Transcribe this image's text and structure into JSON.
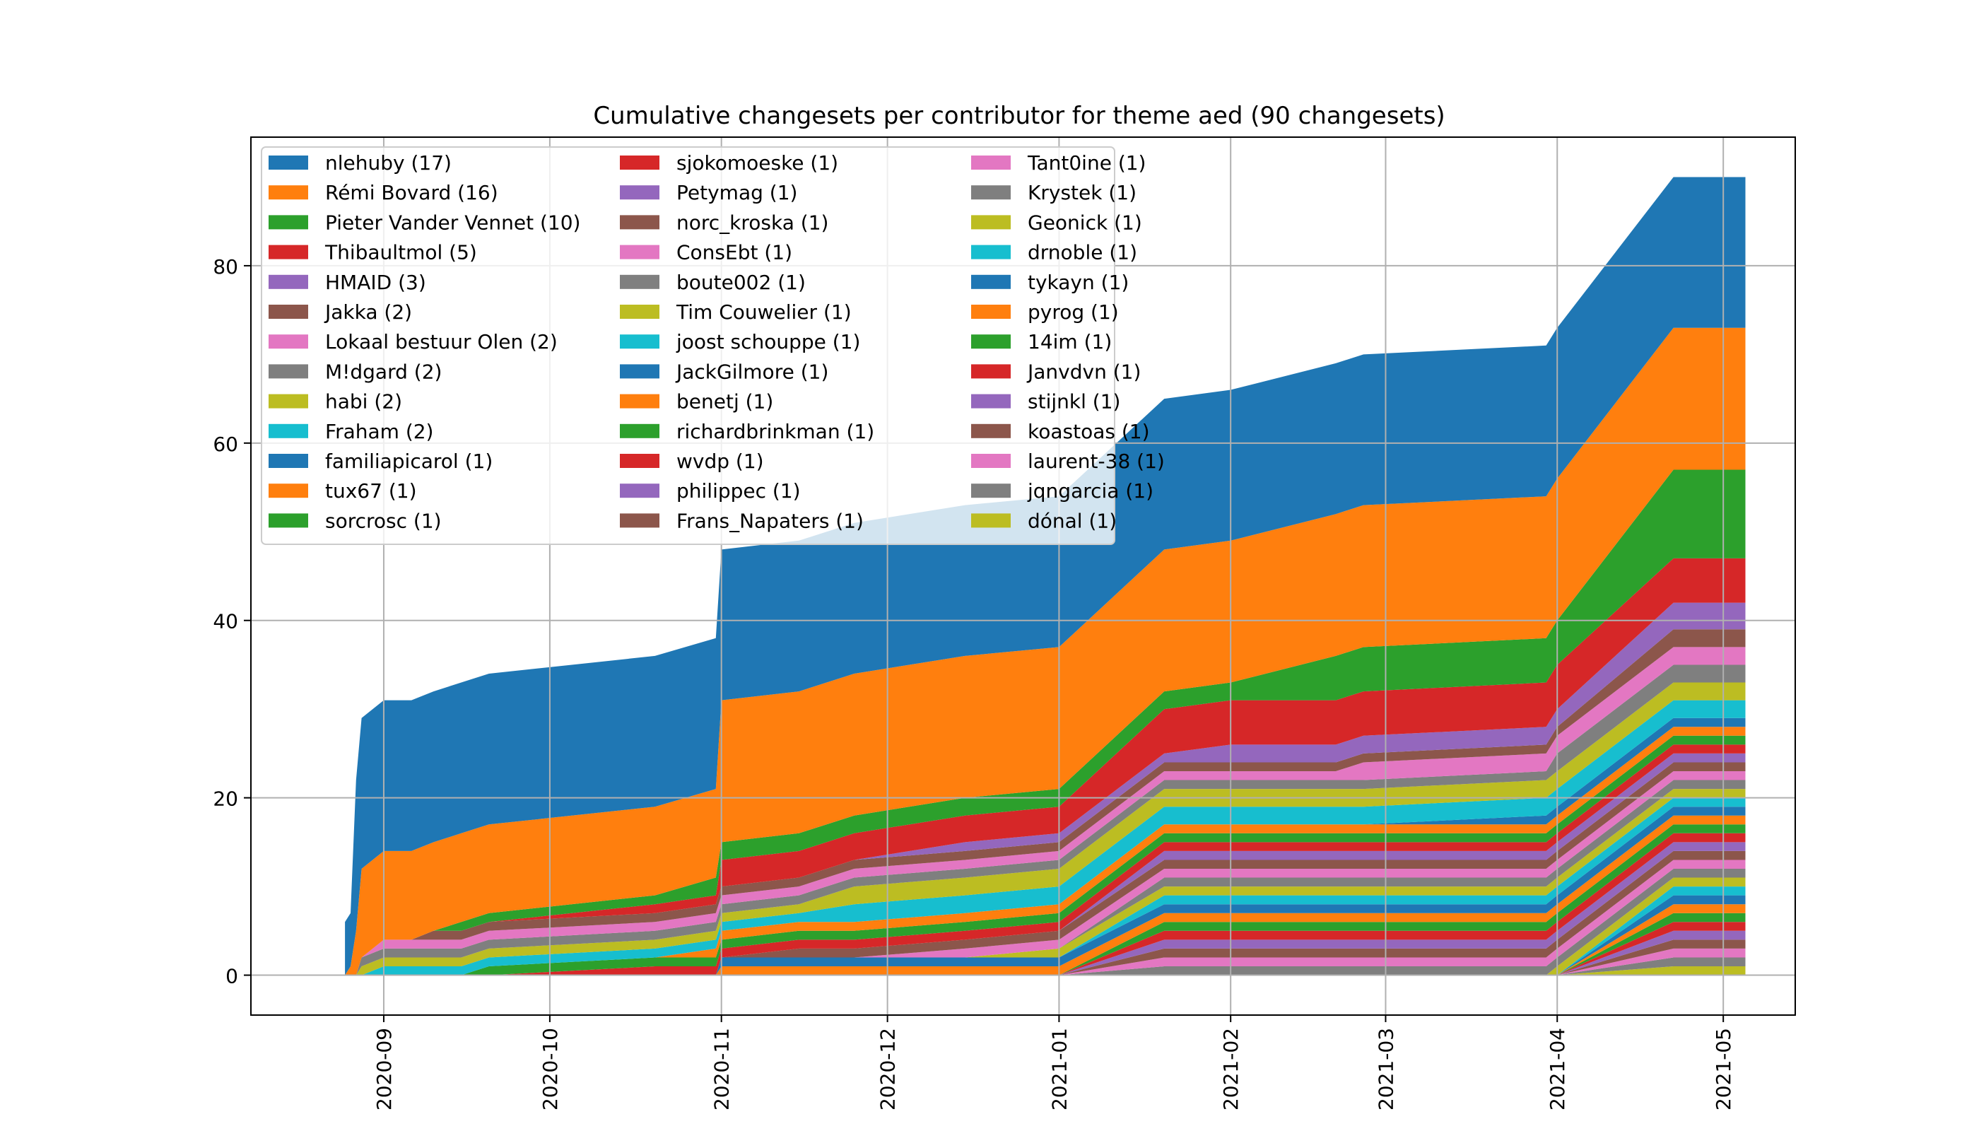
{
  "chart_data": {
    "type": "area",
    "stacked": true,
    "title": "Cumulative changesets per contributor for theme aed (90 changesets)",
    "xlabel": "",
    "ylabel": "",
    "xlim": [
      "2020-08-08",
      "2021-05-14"
    ],
    "ylim": [
      -4.5,
      94.5
    ],
    "yticks": [
      0,
      20,
      40,
      60,
      80
    ],
    "xticks": [
      "2020-09",
      "2020-10",
      "2020-11",
      "2020-12",
      "2021-01",
      "2021-02",
      "2021-03",
      "2021-04",
      "2021-05"
    ],
    "xtick_dates": [
      "2020-09-01",
      "2020-10-01",
      "2020-11-01",
      "2020-12-01",
      "2021-01-01",
      "2021-02-01",
      "2021-03-01",
      "2021-04-01",
      "2021-05-01"
    ],
    "grid": true,
    "legend": {
      "placement": "upper left",
      "columns": 3
    },
    "series": [
      {
        "name": "nlehuby (17)",
        "color": "#1f77b4",
        "points": [
          [
            "2020-08-25",
            6
          ],
          [
            "2020-08-27",
            17
          ],
          [
            "2020-09-06",
            17
          ]
        ]
      },
      {
        "name": "Rémi Bovard (16)",
        "color": "#ff7f0e",
        "points": [
          [
            "2020-08-26",
            1
          ],
          [
            "2020-08-27",
            5
          ],
          [
            "2020-08-28",
            10
          ],
          [
            "2020-09-15",
            10
          ],
          [
            "2020-11-01",
            16
          ]
        ]
      },
      {
        "name": "Pieter Vander Vennet (10)",
        "color": "#2ca02c",
        "points": [
          [
            "2020-09-15",
            1
          ],
          [
            "2020-10-31",
            2
          ],
          [
            "2021-02-20",
            5
          ],
          [
            "2021-04-22",
            10
          ]
        ]
      },
      {
        "name": "Thibaultmol (5)",
        "color": "#d62728",
        "points": [
          [
            "2020-10-20",
            1
          ],
          [
            "2020-11-01",
            3
          ],
          [
            "2021-01-20",
            5
          ]
        ]
      },
      {
        "name": "HMAID (3)",
        "color": "#9467bd",
        "points": [
          [
            "2020-12-15",
            1
          ],
          [
            "2021-02-01",
            2
          ],
          [
            "2021-04-22",
            3
          ]
        ]
      },
      {
        "name": "Jakka (2)",
        "color": "#8c564b",
        "points": [
          [
            "2020-09-10",
            1
          ],
          [
            "2021-04-22",
            2
          ]
        ]
      },
      {
        "name": "Lokaal bestuur Olen (2)",
        "color": "#e377c2",
        "points": [
          [
            "2020-09-01",
            1
          ],
          [
            "2021-02-25",
            2
          ]
        ]
      },
      {
        "name": "M!dgard (2)",
        "color": "#7f7f7f",
        "points": [
          [
            "2020-08-28",
            1
          ],
          [
            "2021-04-01",
            2
          ]
        ]
      },
      {
        "name": "habi (2)",
        "color": "#bcbd22",
        "points": [
          [
            "2020-08-28",
            1
          ],
          [
            "2020-11-25",
            2
          ]
        ]
      },
      {
        "name": "Fraham (2)",
        "color": "#17becf",
        "points": [
          [
            "2020-09-01",
            1
          ],
          [
            "2020-11-25",
            2
          ]
        ]
      },
      {
        "name": "familiapicarol (1)",
        "color": "#1f77b4",
        "points": [
          [
            "2021-03-30",
            1
          ]
        ]
      },
      {
        "name": "tux67 (1)",
        "color": "#ff7f0e",
        "points": [
          [
            "2020-10-31",
            1
          ]
        ]
      },
      {
        "name": "sorcrosc (1)",
        "color": "#2ca02c",
        "points": [
          [
            "2020-09-20",
            1
          ]
        ]
      },
      {
        "name": "sjokomoeske (1)",
        "color": "#d62728",
        "points": [
          [
            "2020-10-20",
            1
          ]
        ]
      },
      {
        "name": "Petymag (1)",
        "color": "#9467bd",
        "points": [
          [
            "2021-01-20",
            1
          ]
        ]
      },
      {
        "name": "norc_kroska (1)",
        "color": "#8c564b",
        "points": [
          [
            "2020-11-15",
            1
          ]
        ]
      },
      {
        "name": "ConsEbt (1)",
        "color": "#e377c2",
        "points": [
          [
            "2020-12-15",
            1
          ]
        ]
      },
      {
        "name": "boute002 (1)",
        "color": "#7f7f7f",
        "points": [
          [
            "2021-01-20",
            1
          ]
        ]
      },
      {
        "name": "Tim Couwelier (1)",
        "color": "#bcbd22",
        "points": [
          [
            "2021-01-01",
            1
          ]
        ]
      },
      {
        "name": "joost schouppe (1)",
        "color": "#17becf",
        "points": [
          [
            "2021-01-20",
            1
          ]
        ]
      },
      {
        "name": "JackGilmore (1)",
        "color": "#1f77b4",
        "points": [
          [
            "2020-11-01",
            1
          ]
        ]
      },
      {
        "name": "benetj (1)",
        "color": "#ff7f0e",
        "points": [
          [
            "2020-11-01",
            1
          ]
        ]
      },
      {
        "name": "richardbrinkman (1)",
        "color": "#2ca02c",
        "points": [
          [
            "2021-01-20",
            1
          ]
        ]
      },
      {
        "name": "wvdp (1)",
        "color": "#d62728",
        "points": [
          [
            "2021-01-20",
            1
          ]
        ]
      },
      {
        "name": "philippec (1)",
        "color": "#9467bd",
        "points": [
          [
            "2021-01-20",
            1
          ]
        ]
      },
      {
        "name": "Frans_Napaters (1)",
        "color": "#8c564b",
        "points": [
          [
            "2021-01-20",
            1
          ]
        ]
      },
      {
        "name": "Tant0ine (1)",
        "color": "#e377c2",
        "points": [
          [
            "2021-01-20",
            1
          ]
        ]
      },
      {
        "name": "Krystek (1)",
        "color": "#7f7f7f",
        "points": [
          [
            "2021-01-20",
            1
          ]
        ]
      },
      {
        "name": "Geonick (1)",
        "color": "#bcbd22",
        "points": [
          [
            "2021-04-01",
            1
          ]
        ]
      },
      {
        "name": "drnoble (1)",
        "color": "#17becf",
        "points": [
          [
            "2021-04-22",
            1
          ]
        ]
      },
      {
        "name": "tykayn (1)",
        "color": "#1f77b4",
        "points": [
          [
            "2021-04-22",
            1
          ]
        ]
      },
      {
        "name": "pyrog (1)",
        "color": "#ff7f0e",
        "points": [
          [
            "2021-04-22",
            1
          ]
        ]
      },
      {
        "name": "14im (1)",
        "color": "#2ca02c",
        "points": [
          [
            "2021-04-22",
            1
          ]
        ]
      },
      {
        "name": "Janvdvn (1)",
        "color": "#d62728",
        "points": [
          [
            "2021-04-22",
            1
          ]
        ]
      },
      {
        "name": "stijnkl (1)",
        "color": "#9467bd",
        "points": [
          [
            "2021-04-22",
            1
          ]
        ]
      },
      {
        "name": "koastoas (1)",
        "color": "#8c564b",
        "points": [
          [
            "2021-04-22",
            1
          ]
        ]
      },
      {
        "name": "laurent-38 (1)",
        "color": "#e377c2",
        "points": [
          [
            "2021-04-22",
            1
          ]
        ]
      },
      {
        "name": "jqngarcia (1)",
        "color": "#7f7f7f",
        "points": [
          [
            "2021-04-22",
            1
          ]
        ]
      },
      {
        "name": "dónal (1)",
        "color": "#bcbd22",
        "points": [
          [
            "2021-04-22",
            1
          ]
        ]
      }
    ]
  }
}
